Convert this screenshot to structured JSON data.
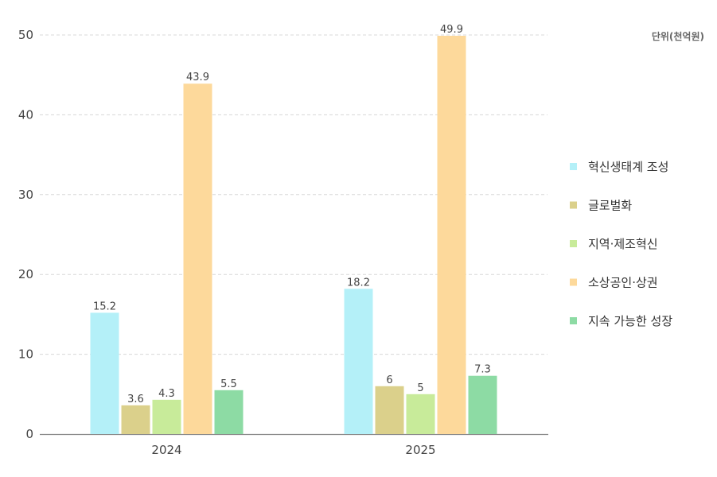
{
  "chart_data": {
    "type": "bar",
    "categories": [
      "2024",
      "2025"
    ],
    "unit_label": "단위(천억원)",
    "ylim": [
      0,
      50
    ],
    "yticks": [
      0,
      10,
      20,
      30,
      40,
      50
    ],
    "grid": true,
    "legend_position": "right",
    "series": [
      {
        "name": "혁신생태계 조성",
        "color": "#b4f0f8",
        "values": [
          15.2,
          18.2
        ]
      },
      {
        "name": "글로벌화",
        "color": "#dbd08b",
        "values": [
          3.6,
          6
        ]
      },
      {
        "name": "지역·제조혁신",
        "color": "#c8eb9a",
        "values": [
          4.3,
          5
        ]
      },
      {
        "name": "소상공인·상권",
        "color": "#fdd99b",
        "values": [
          43.9,
          49.9
        ]
      },
      {
        "name": "지속  가능한 성장",
        "color": "#8ddba4",
        "values": [
          5.5,
          7.3
        ]
      }
    ]
  }
}
